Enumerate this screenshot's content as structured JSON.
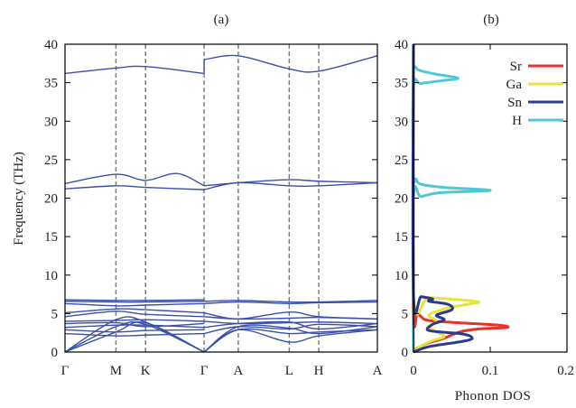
{
  "chart_data": [
    {
      "panel": "(a)",
      "type": "line",
      "ylabel": "Frequency (THz)",
      "ylim": [
        0,
        40
      ],
      "yticks": [
        0,
        5,
        10,
        15,
        20,
        25,
        30,
        35,
        40
      ],
      "kpoints": [
        {
          "label": "Γ",
          "x": 0
        },
        {
          "label": "M",
          "x": 1
        },
        {
          "label": "K",
          "x": 1.58
        },
        {
          "label": "Γ",
          "x": 2.73
        },
        {
          "label": "A",
          "x": 3.4
        },
        {
          "label": "L",
          "x": 4.4
        },
        {
          "label": "H",
          "x": 4.98
        },
        {
          "label": "A",
          "x": 6.13
        }
      ],
      "line_color": "#3a4fad",
      "segments": [
        {
          "x0": 0,
          "x1": 2.73,
          "bands": [
            [
              [
                0,
                0
              ],
              [
                1,
                2.6
              ],
              [
                1.58,
                3.8
              ],
              [
                2.73,
                0
              ]
            ],
            [
              [
                0,
                0
              ],
              [
                1,
                3.3
              ],
              [
                1.58,
                3.6
              ],
              [
                2.73,
                0
              ]
            ],
            [
              [
                0,
                0
              ],
              [
                1,
                4.2
              ],
              [
                1.58,
                3.9
              ],
              [
                2.73,
                0
              ]
            ],
            [
              [
                0,
                2.4
              ],
              [
                1,
                2.1
              ],
              [
                1.58,
                2.2
              ],
              [
                2.73,
                2.4
              ]
            ],
            [
              [
                0,
                2.9
              ],
              [
                1,
                2.6
              ],
              [
                1.58,
                2.8
              ],
              [
                2.73,
                2.9
              ]
            ],
            [
              [
                0,
                3.2
              ],
              [
                1,
                3.5
              ],
              [
                1.58,
                3.5
              ],
              [
                2.73,
                3.2
              ]
            ],
            [
              [
                0,
                3.7
              ],
              [
                1,
                3.8
              ],
              [
                1.58,
                3.3
              ],
              [
                2.73,
                3.7
              ]
            ],
            [
              [
                0,
                4.0
              ],
              [
                1,
                4.1
              ],
              [
                1.58,
                4.2
              ],
              [
                2.73,
                4.0
              ]
            ],
            [
              [
                0,
                4.6
              ],
              [
                1,
                5.3
              ],
              [
                1.58,
                4.9
              ],
              [
                2.73,
                4.6
              ]
            ],
            [
              [
                0,
                5.1
              ],
              [
                1,
                5.6
              ],
              [
                1.58,
                5.5
              ],
              [
                2.73,
                5.1
              ]
            ],
            [
              [
                0,
                6.3
              ],
              [
                1,
                6.0
              ],
              [
                1.58,
                6.1
              ],
              [
                2.73,
                6.3
              ]
            ],
            [
              [
                0,
                6.6
              ],
              [
                1,
                6.5
              ],
              [
                1.58,
                6.5
              ],
              [
                2.73,
                6.6
              ]
            ],
            [
              [
                0,
                6.8
              ],
              [
                1,
                6.7
              ],
              [
                1.58,
                6.7
              ],
              [
                2.73,
                6.8
              ]
            ],
            [
              [
                0,
                21.2
              ],
              [
                1,
                21.6
              ],
              [
                1.58,
                21.4
              ],
              [
                2.73,
                21.1
              ]
            ],
            [
              [
                0,
                21.9
              ],
              [
                1,
                23.1
              ],
              [
                1.58,
                22.3
              ],
              [
                2.2,
                23.2
              ],
              [
                2.73,
                21.6
              ]
            ],
            [
              [
                0,
                36.2
              ],
              [
                1,
                36.9
              ],
              [
                1.58,
                37.1
              ],
              [
                2.73,
                36.2
              ]
            ]
          ]
        },
        {
          "x0": 2.73,
          "x1": 6.13,
          "bands": [
            [
              [
                2.73,
                0
              ],
              [
                3.4,
                2.9
              ],
              [
                4.4,
                1.3
              ],
              [
                4.98,
                2.1
              ],
              [
                6.13,
                2.9
              ]
            ],
            [
              [
                2.73,
                0
              ],
              [
                3.4,
                2.9
              ],
              [
                4.4,
                2.4
              ],
              [
                4.98,
                2.6
              ],
              [
                6.13,
                2.9
              ]
            ],
            [
              [
                2.73,
                0
              ],
              [
                3.4,
                3.3
              ],
              [
                4.4,
                3.1
              ],
              [
                4.98,
                2.4
              ],
              [
                6.13,
                3.3
              ]
            ],
            [
              [
                2.73,
                2.4
              ],
              [
                3.4,
                3.3
              ],
              [
                4.4,
                3.0
              ],
              [
                4.98,
                3.6
              ],
              [
                6.13,
                3.3
              ]
            ],
            [
              [
                2.73,
                3.2
              ],
              [
                3.4,
                3.7
              ],
              [
                4.4,
                3.9
              ],
              [
                4.98,
                3.0
              ],
              [
                6.13,
                3.7
              ]
            ],
            [
              [
                2.73,
                4.0
              ],
              [
                3.4,
                3.7
              ],
              [
                4.4,
                3.8
              ],
              [
                4.98,
                3.9
              ],
              [
                6.13,
                3.7
              ]
            ],
            [
              [
                2.73,
                4.6
              ],
              [
                3.4,
                4.3
              ],
              [
                4.4,
                4.4
              ],
              [
                4.98,
                4.5
              ],
              [
                6.13,
                4.3
              ]
            ],
            [
              [
                2.73,
                5.1
              ],
              [
                3.4,
                4.3
              ],
              [
                4.4,
                5.2
              ],
              [
                4.98,
                4.6
              ],
              [
                6.13,
                4.3
              ]
            ],
            [
              [
                2.73,
                6.3
              ],
              [
                3.4,
                6.5
              ],
              [
                4.4,
                6.3
              ],
              [
                4.98,
                6.4
              ],
              [
                6.13,
                6.5
              ]
            ],
            [
              [
                2.73,
                6.6
              ],
              [
                3.4,
                6.7
              ],
              [
                4.4,
                6.5
              ],
              [
                4.98,
                6.5
              ],
              [
                6.13,
                6.7
              ]
            ],
            [
              [
                2.73,
                21.1
              ],
              [
                3.4,
                22.0
              ],
              [
                4.4,
                21.6
              ],
              [
                4.98,
                21.6
              ],
              [
                6.13,
                22.0
              ]
            ],
            [
              [
                2.73,
                21.6
              ],
              [
                3.4,
                22.0
              ],
              [
                4.4,
                22.4
              ],
              [
                4.98,
                22.2
              ],
              [
                6.13,
                22.0
              ]
            ],
            [
              [
                2.73,
                38.0
              ],
              [
                3.4,
                38.5
              ],
              [
                4.4,
                36.8
              ],
              [
                4.98,
                36.5
              ],
              [
                6.13,
                38.5
              ]
            ]
          ]
        }
      ]
    },
    {
      "panel": "(b)",
      "type": "line",
      "xlabel": "Phonon DOS",
      "xlim": [
        0,
        0.2
      ],
      "xticks": [
        0,
        0.1,
        0.2
      ],
      "ylim": [
        0,
        40
      ],
      "yticks": [
        0,
        5,
        10,
        15,
        20,
        25,
        30,
        35,
        40
      ],
      "legend_position": "top-right",
      "series": [
        {
          "name": "Sr",
          "color": "#e8312a",
          "points": [
            [
              0,
              0
            ],
            [
              0.005,
              0.5
            ],
            [
              0.02,
              1.2
            ],
            [
              0.04,
              1.8
            ],
            [
              0.06,
              2.6
            ],
            [
              0.085,
              3.0
            ],
            [
              0.122,
              3.2
            ],
            [
              0.11,
              3.5
            ],
            [
              0.06,
              3.8
            ],
            [
              0.02,
              4.1
            ],
            [
              0.01,
              4.6
            ],
            [
              0.005,
              5.2
            ],
            [
              0,
              6.0
            ],
            [
              0,
              40
            ]
          ]
        },
        {
          "name": "Ga",
          "color": "#e6e63a",
          "points": [
            [
              0,
              0
            ],
            [
              0.01,
              0.8
            ],
            [
              0.025,
              1.5
            ],
            [
              0.04,
              2.0
            ],
            [
              0.03,
              2.6
            ],
            [
              0.02,
              3.3
            ],
            [
              0.03,
              4.0
            ],
            [
              0.02,
              4.8
            ],
            [
              0.04,
              5.6
            ],
            [
              0.07,
              6.2
            ],
            [
              0.085,
              6.5
            ],
            [
              0.06,
              6.8
            ],
            [
              0.02,
              7.1
            ],
            [
              0,
              7.4
            ],
            [
              0,
              40
            ]
          ]
        },
        {
          "name": "Sn",
          "color": "#2b3a8c",
          "points": [
            [
              0,
              0
            ],
            [
              0.02,
              0.7
            ],
            [
              0.07,
              1.5
            ],
            [
              0.075,
              2.0
            ],
            [
              0.06,
              2.4
            ],
            [
              0.02,
              2.8
            ],
            [
              0.025,
              3.6
            ],
            [
              0.04,
              4.2
            ],
            [
              0.03,
              4.8
            ],
            [
              0.05,
              5.5
            ],
            [
              0.045,
              6.2
            ],
            [
              0.02,
              6.6
            ],
            [
              0.025,
              6.9
            ],
            [
              0.01,
              7.2
            ],
            [
              0,
              7.5
            ],
            [
              0,
              40
            ]
          ]
        },
        {
          "name": "H",
          "color": "#4fc7d6",
          "points": [
            [
              0,
              0
            ],
            [
              0,
              20
            ],
            [
              0.01,
              20.2
            ],
            [
              0.035,
              20.7
            ],
            [
              0.1,
              21.0
            ],
            [
              0.04,
              21.4
            ],
            [
              0.01,
              21.8
            ],
            [
              0.003,
              22.5
            ],
            [
              0,
              23.0
            ],
            [
              0,
              34.5
            ],
            [
              0.01,
              34.9
            ],
            [
              0.04,
              35.3
            ],
            [
              0.058,
              35.6
            ],
            [
              0.03,
              36.1
            ],
            [
              0.008,
              36.6
            ],
            [
              0.003,
              37.0
            ],
            [
              0,
              37.5
            ],
            [
              0,
              40
            ]
          ]
        }
      ]
    }
  ]
}
